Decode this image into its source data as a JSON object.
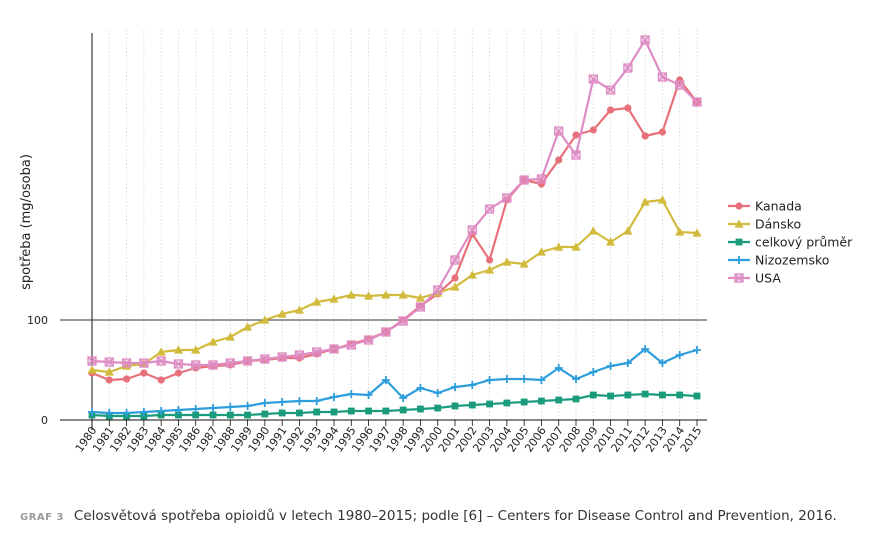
{
  "chart_data": {
    "type": "line",
    "ylabel": "spotřeba (mg/osoba)",
    "x": [
      1980,
      1981,
      1982,
      1983,
      1984,
      1985,
      1986,
      1987,
      1988,
      1989,
      1990,
      1991,
      1992,
      1993,
      1994,
      1995,
      1996,
      1997,
      1998,
      1999,
      2000,
      2001,
      2002,
      2003,
      2004,
      2005,
      2006,
      2007,
      2008,
      2009,
      2010,
      2011,
      2012,
      2013,
      2014,
      2015
    ],
    "x_tick_labels": [
      "1980",
      "1981",
      "1982",
      "1983",
      "1984",
      "1985",
      "1986",
      "1987",
      "1988",
      "1989",
      "1990",
      "1991",
      "1992",
      "1993",
      "1994",
      "1995",
      "1996",
      "1997",
      "1998",
      "1999",
      "2000",
      "2001",
      "2002",
      "2003",
      "2004",
      "2005",
      "2006",
      "2007",
      "2008",
      "2009",
      "2010",
      "2011",
      "2012",
      "2013",
      "2014",
      "2015"
    ],
    "y_ticks": [
      0,
      100
    ],
    "y_tick_labels": [
      "0",
      "100"
    ],
    "ylim": [
      0,
      390
    ],
    "grid": "vertical dotted",
    "legend_position": "right",
    "series": [
      {
        "name": "Kanada",
        "color": "#e8707a",
        "marker": "circle",
        "values": [
          47,
          40,
          41,
          47,
          40,
          47,
          52,
          54,
          55,
          59,
          60,
          62,
          62,
          66,
          71,
          76,
          81,
          88,
          100,
          114,
          126,
          142,
          186,
          160,
          220,
          240,
          236,
          260,
          285,
          290,
          310,
          312,
          284,
          288,
          340,
          318
        ]
      },
      {
        "name": "Dánsko",
        "color": "#d2bb3c",
        "marker": "triangle",
        "values": [
          50,
          48,
          54,
          56,
          68,
          70,
          70,
          78,
          83,
          93,
          100,
          106,
          110,
          118,
          121,
          125,
          124,
          125,
          125,
          122,
          127,
          133,
          145,
          150,
          158,
          156,
          168,
          173,
          173,
          189,
          178,
          189,
          218,
          220,
          188,
          187
        ]
      },
      {
        "name": "celkový průměr",
        "color": "#1a9b7c",
        "marker": "square",
        "values": [
          5,
          4,
          4,
          4,
          5,
          5,
          5,
          5,
          5,
          5,
          6,
          7,
          7,
          8,
          8,
          9,
          9,
          9,
          10,
          11,
          12,
          14,
          15,
          16,
          17,
          18,
          19,
          20,
          21,
          25,
          24,
          25,
          26,
          25,
          25,
          24
        ]
      },
      {
        "name": "Nizozemsko",
        "color": "#2e9ddb",
        "marker": "plus",
        "values": [
          8,
          7,
          7,
          8,
          9,
          10,
          11,
          12,
          13,
          14,
          17,
          18,
          19,
          19,
          23,
          26,
          25,
          40,
          22,
          32,
          27,
          33,
          35,
          40,
          41,
          41,
          40,
          52,
          41,
          48,
          54,
          57,
          71,
          57,
          65,
          70
        ]
      },
      {
        "name": "USA",
        "color": "#de8cc3",
        "marker": "x-square",
        "values": [
          59,
          58,
          57,
          57,
          59,
          56,
          55,
          55,
          57,
          59,
          61,
          63,
          65,
          68,
          71,
          75,
          80,
          88,
          99,
          113,
          130,
          160,
          190,
          211,
          222,
          240,
          241,
          289,
          265,
          341,
          330,
          352,
          380,
          343,
          335,
          318
        ]
      }
    ]
  },
  "caption": {
    "tag": "GRAF 3",
    "text": "Celosvětová spotřeba opioidů v letech 1980–2015; podle [6] – Centers for Disease Control and Prevention, 2016."
  }
}
